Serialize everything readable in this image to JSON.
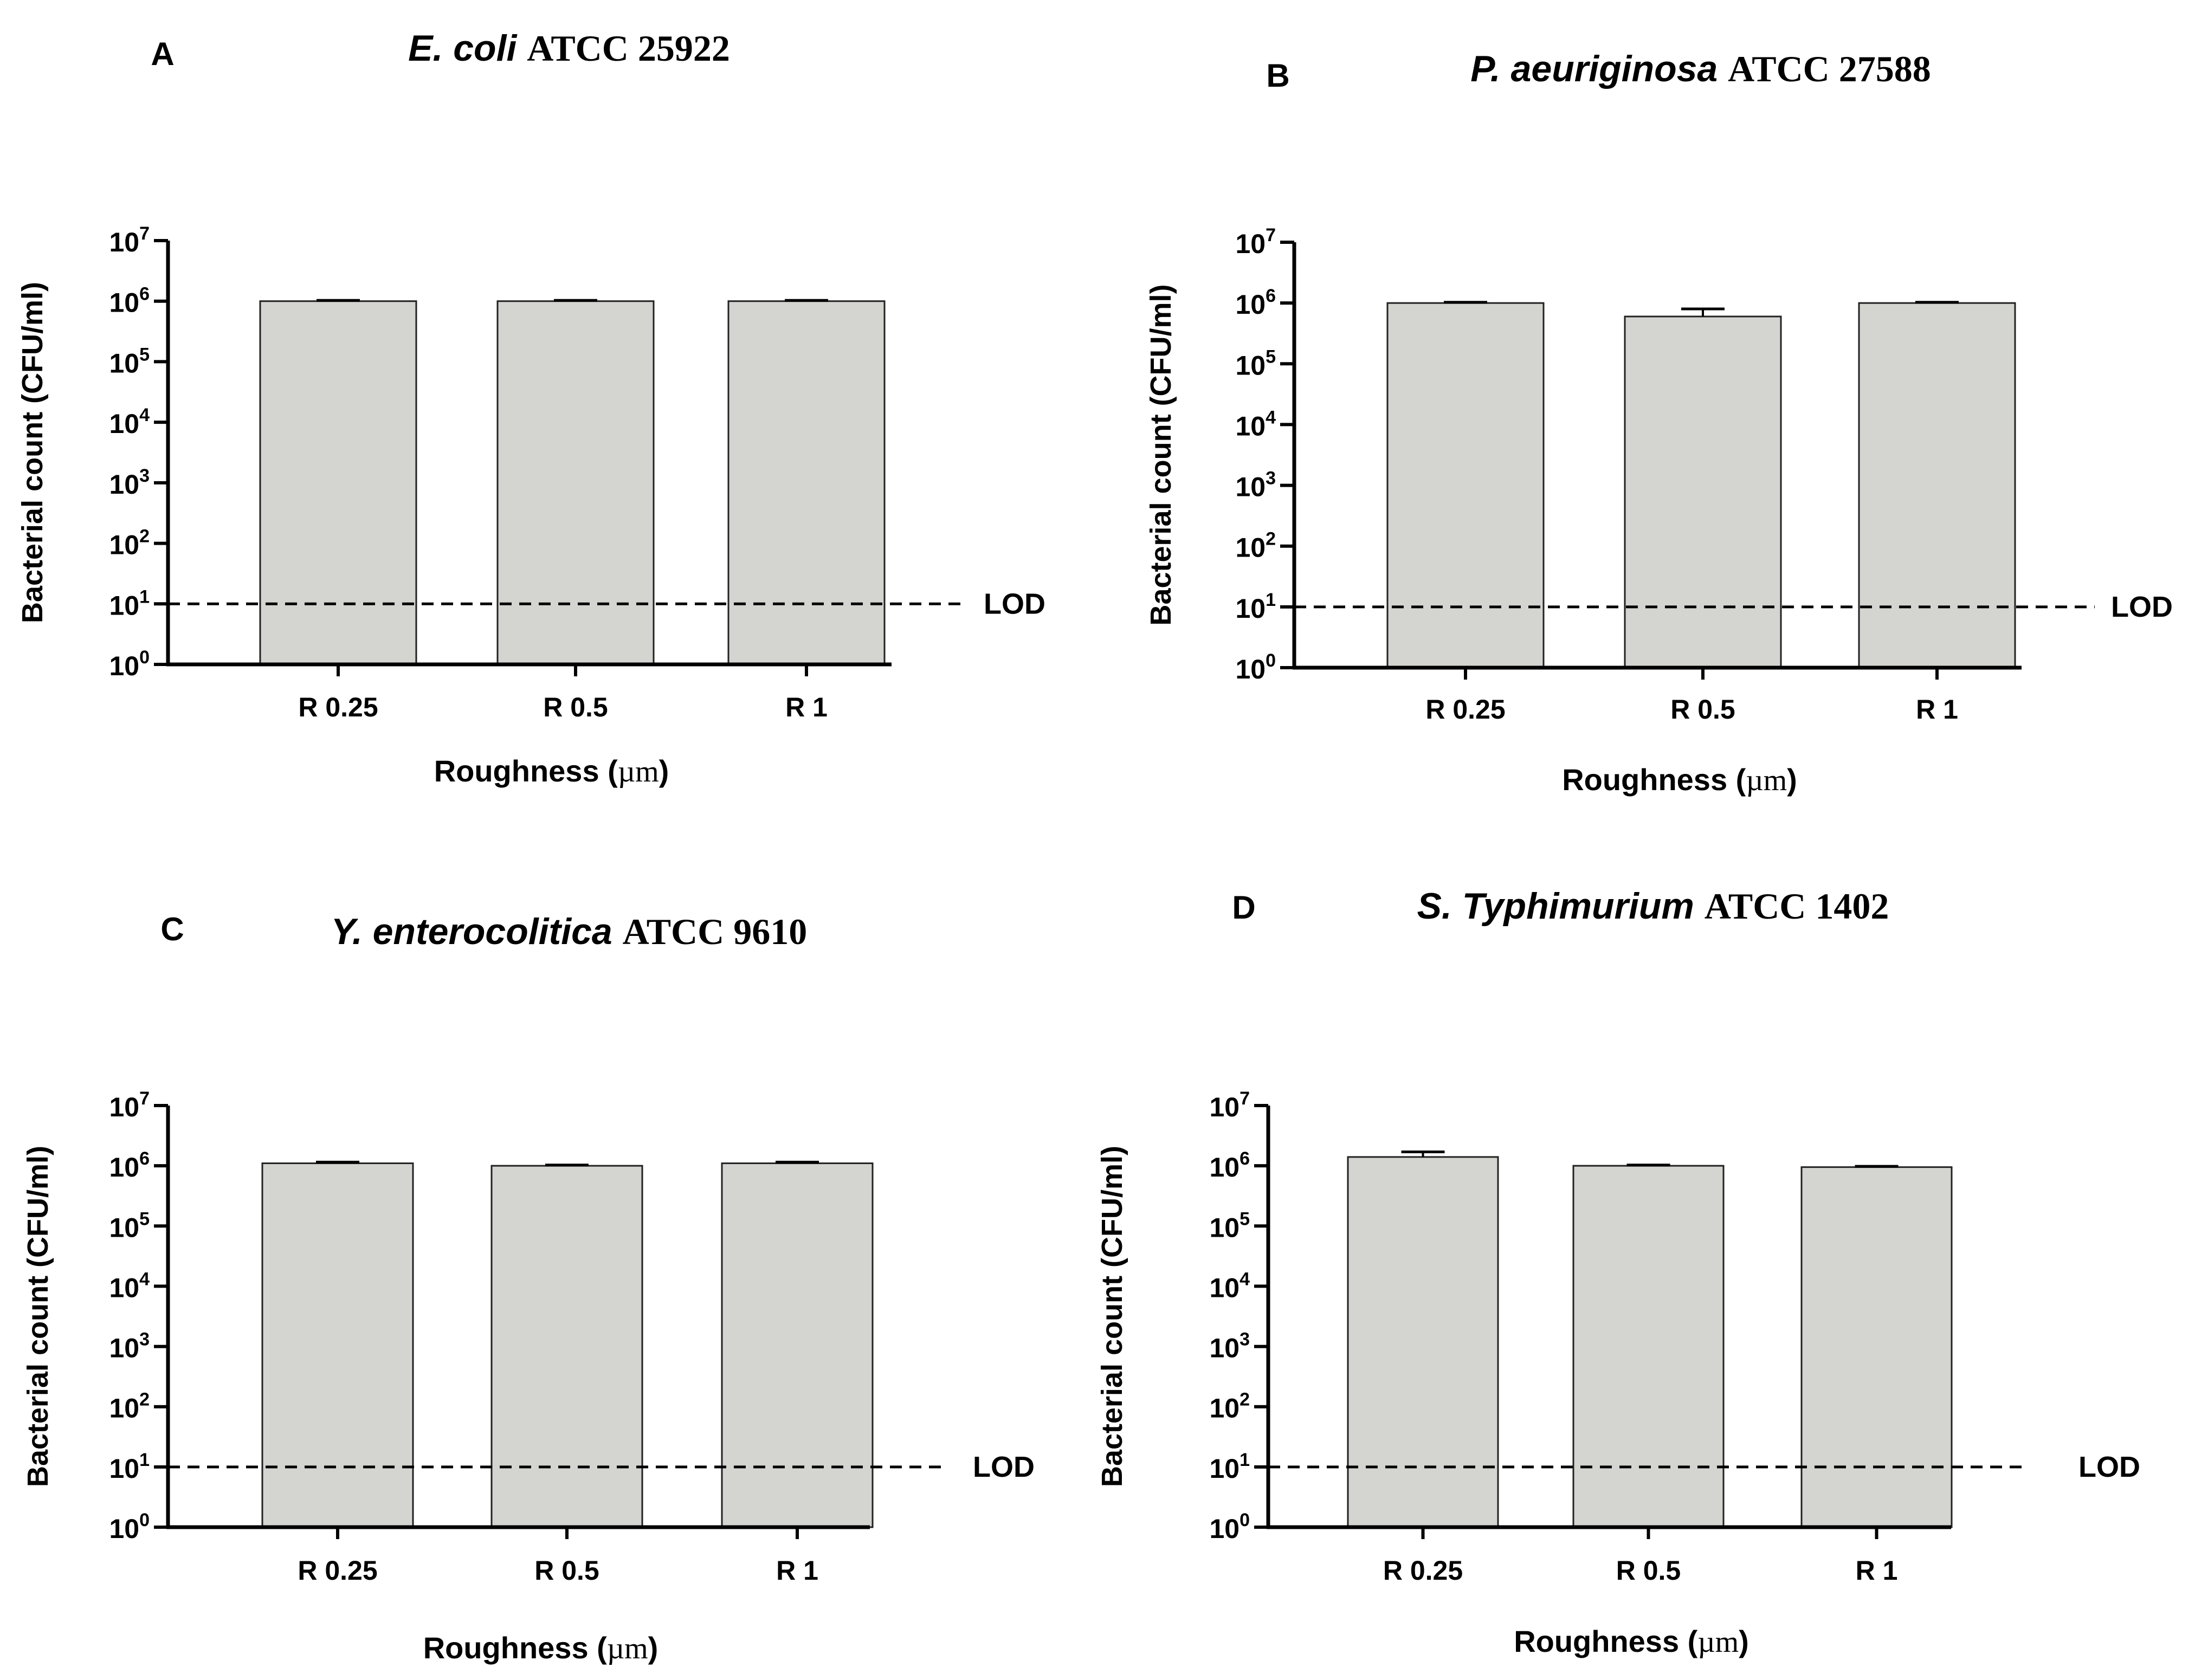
{
  "chart_data": [
    {
      "panel_label": "A",
      "title_italic": "E. coli",
      "title_strain": "ATCC 25922",
      "type": "bar",
      "yscale": "log10",
      "categories": [
        "R 0.25",
        "R 0.5",
        "R 1"
      ],
      "values": [
        1000000,
        1000000,
        1000000
      ],
      "errors": [
        30000,
        30000,
        30000
      ],
      "ylim": [
        1,
        10000000
      ],
      "yticks": [
        {
          "base": "10",
          "exp": "0",
          "value": 1
        },
        {
          "base": "10",
          "exp": "1",
          "value": 10
        },
        {
          "base": "10",
          "exp": "2",
          "value": 100
        },
        {
          "base": "10",
          "exp": "3",
          "value": 1000
        },
        {
          "base": "10",
          "exp": "4",
          "value": 10000
        },
        {
          "base": "10",
          "exp": "5",
          "value": 100000
        },
        {
          "base": "10",
          "exp": "6",
          "value": 1000000
        },
        {
          "base": "10",
          "exp": "7",
          "value": 10000000
        }
      ],
      "ylabel": "Bacterial count (CFU/ml)",
      "xlabel_prefix": "Roughness (",
      "xlabel_unit": "µm",
      "xlabel_suffix": ")",
      "lod_value": 10,
      "lod_label": "LOD"
    },
    {
      "panel_label": "B",
      "title_italic": "P. aeuriginosa",
      "title_strain": "ATCC 27588",
      "type": "bar",
      "yscale": "log10",
      "categories": [
        "R 0.25",
        "R 0.5",
        "R 1"
      ],
      "values": [
        1000000,
        600000,
        1000000
      ],
      "errors": [
        30000,
        200000,
        30000
      ],
      "ylim": [
        1,
        10000000
      ],
      "yticks": [
        {
          "base": "10",
          "exp": "0",
          "value": 1
        },
        {
          "base": "10",
          "exp": "1",
          "value": 10
        },
        {
          "base": "10",
          "exp": "2",
          "value": 100
        },
        {
          "base": "10",
          "exp": "3",
          "value": 1000
        },
        {
          "base": "10",
          "exp": "4",
          "value": 10000
        },
        {
          "base": "10",
          "exp": "5",
          "value": 100000
        },
        {
          "base": "10",
          "exp": "6",
          "value": 1000000
        },
        {
          "base": "10",
          "exp": "7",
          "value": 10000000
        }
      ],
      "ylabel": "Bacterial count (CFU/ml)",
      "xlabel_prefix": "Roughness (",
      "xlabel_unit": "µm",
      "xlabel_suffix": ")",
      "lod_value": 10,
      "lod_label": "LOD"
    },
    {
      "panel_label": "C",
      "title_italic": "Y. enterocolitica",
      "title_strain": "ATCC 9610",
      "type": "bar",
      "yscale": "log10",
      "categories": [
        "R 0.25",
        "R 0.5",
        "R 1"
      ],
      "values": [
        1100000,
        1000000,
        1100000
      ],
      "errors": [
        50000,
        30000,
        50000
      ],
      "ylim": [
        1,
        10000000
      ],
      "yticks": [
        {
          "base": "10",
          "exp": "0",
          "value": 1
        },
        {
          "base": "10",
          "exp": "1",
          "value": 10
        },
        {
          "base": "10",
          "exp": "2",
          "value": 100
        },
        {
          "base": "10",
          "exp": "3",
          "value": 1000
        },
        {
          "base": "10",
          "exp": "4",
          "value": 10000
        },
        {
          "base": "10",
          "exp": "5",
          "value": 100000
        },
        {
          "base": "10",
          "exp": "6",
          "value": 1000000
        },
        {
          "base": "10",
          "exp": "7",
          "value": 10000000
        }
      ],
      "ylabel": "Bacterial count (CFU/ml)",
      "xlabel_prefix": "Roughness (",
      "xlabel_unit": "µm",
      "xlabel_suffix": ")",
      "lod_value": 10,
      "lod_label": "LOD"
    },
    {
      "panel_label": "D",
      "title_italic": "S. Typhimurium",
      "title_strain": "ATCC 1402",
      "type": "bar",
      "yscale": "log10",
      "categories": [
        "R 0.25",
        "R 0.5",
        "R 1"
      ],
      "values": [
        1400000,
        1000000,
        950000
      ],
      "errors": [
        300000,
        30000,
        30000
      ],
      "ylim": [
        1,
        10000000
      ],
      "yticks": [
        {
          "base": "10",
          "exp": "0",
          "value": 1
        },
        {
          "base": "10",
          "exp": "1",
          "value": 10
        },
        {
          "base": "10",
          "exp": "2",
          "value": 100
        },
        {
          "base": "10",
          "exp": "3",
          "value": 1000
        },
        {
          "base": "10",
          "exp": "4",
          "value": 10000
        },
        {
          "base": "10",
          "exp": "5",
          "value": 100000
        },
        {
          "base": "10",
          "exp": "6",
          "value": 1000000
        },
        {
          "base": "10",
          "exp": "7",
          "value": 10000000
        }
      ],
      "ylabel": "Bacterial count (CFU/ml)",
      "xlabel_prefix": "Roughness (",
      "xlabel_unit": "µm",
      "xlabel_suffix": ")",
      "lod_value": 10,
      "lod_label": "LOD"
    }
  ],
  "colors": {
    "bar_fill": "#d4d4d0",
    "bar_stroke": "#222222",
    "axis": "#000000",
    "text": "#000000"
  }
}
